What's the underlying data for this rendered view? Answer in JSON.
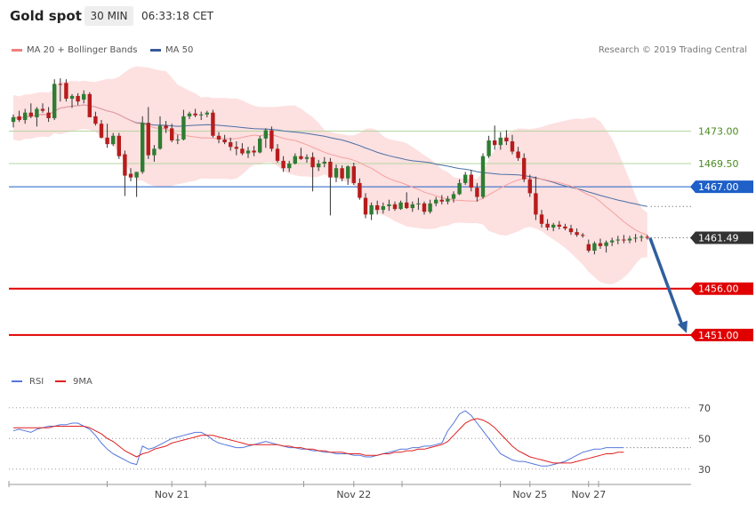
{
  "header": {
    "title": "Gold spot",
    "timeframe": "30 MIN",
    "time": "06:33:18 CET"
  },
  "legend": {
    "ma20_label": "MA 20 + Bollinger Bands",
    "ma20_color": "#f08080",
    "ma50_label": "MA 50",
    "ma50_color": "#3a5a9a",
    "credit": "Research © 2019 Trading Central"
  },
  "colors": {
    "up": "#2e7d32",
    "down": "#b71c1c",
    "band": "#fde0e0",
    "ma20": "#f4a0a0",
    "ma50": "#4a6fa5",
    "resistance": "#b5d6a0",
    "pivot": "#1e5fc8",
    "support": "#e00000",
    "arrow": "#2f5f9e"
  },
  "chart_data": [
    {
      "type": "candlestick",
      "title": "Gold spot",
      "ylim": [
        1448.3,
        1479.0
      ],
      "x_labels": [
        {
          "label": "Nov 21",
          "index": 27
        },
        {
          "label": "Nov 22",
          "index": 58
        },
        {
          "label": "Nov 25",
          "index": 88
        },
        {
          "label": "Nov 27",
          "index": 98
        }
      ],
      "levels": [
        {
          "label": "1473.00",
          "value": 1473.0,
          "kind": "resistance"
        },
        {
          "label": "1469.50",
          "value": 1469.5,
          "kind": "resistance"
        },
        {
          "label": "1467.00",
          "value": 1467.0,
          "kind": "pivot"
        },
        {
          "label": "1461.49",
          "value": 1461.49,
          "kind": "last"
        },
        {
          "label": "1456.00",
          "value": 1456.0,
          "kind": "support"
        },
        {
          "label": "1451.00",
          "value": 1451.0,
          "kind": "support"
        }
      ],
      "forecast_arrow": {
        "from": 1461.49,
        "to": 1451.0
      },
      "candles": [
        [
          1474.0,
          1474.8,
          1473.4,
          1474.5
        ],
        [
          1474.6,
          1475.2,
          1474.0,
          1474.2
        ],
        [
          1474.2,
          1475.4,
          1473.8,
          1475.0
        ],
        [
          1475.0,
          1476.0,
          1474.4,
          1474.6
        ],
        [
          1474.5,
          1475.6,
          1473.5,
          1475.4
        ],
        [
          1475.4,
          1476.0,
          1475.0,
          1475.2
        ],
        [
          1475.0,
          1475.6,
          1474.0,
          1474.4
        ],
        [
          1474.4,
          1478.6,
          1474.2,
          1478.1
        ],
        [
          1478.1,
          1478.7,
          1476.2,
          1478.0
        ],
        [
          1478.2,
          1478.6,
          1476.2,
          1476.5
        ],
        [
          1476.5,
          1477.0,
          1475.5,
          1476.8
        ],
        [
          1476.8,
          1477.1,
          1475.8,
          1476.2
        ],
        [
          1476.4,
          1477.4,
          1476.0,
          1477.0
        ],
        [
          1477.0,
          1477.2,
          1474.6,
          1474.5
        ],
        [
          1474.6,
          1475.1,
          1473.6,
          1473.8
        ],
        [
          1473.8,
          1474.2,
          1472.2,
          1472.3
        ],
        [
          1472.3,
          1473.8,
          1471.2,
          1471.6
        ],
        [
          1471.6,
          1472.8,
          1471.4,
          1472.5
        ],
        [
          1472.5,
          1472.8,
          1470.0,
          1470.3
        ],
        [
          1470.5,
          1470.9,
          1466.0,
          1468.2
        ],
        [
          1468.4,
          1469.0,
          1467.6,
          1468.0
        ],
        [
          1468.0,
          1468.6,
          1465.9,
          1468.6
        ],
        [
          1468.6,
          1474.6,
          1468.4,
          1473.9
        ],
        [
          1473.9,
          1475.6,
          1470.0,
          1470.4
        ],
        [
          1470.4,
          1471.5,
          1469.7,
          1471.1
        ],
        [
          1471.1,
          1474.6,
          1471.0,
          1473.6
        ],
        [
          1473.6,
          1474.1,
          1472.8,
          1473.3
        ],
        [
          1473.3,
          1473.8,
          1471.8,
          1472.0
        ],
        [
          1472.0,
          1472.6,
          1471.6,
          1472.1
        ],
        [
          1472.1,
          1475.3,
          1472.0,
          1474.6
        ],
        [
          1474.6,
          1475.1,
          1474.3,
          1474.9
        ],
        [
          1474.9,
          1475.4,
          1474.5,
          1474.7
        ],
        [
          1474.7,
          1475.1,
          1474.2,
          1474.8
        ],
        [
          1474.8,
          1475.2,
          1474.5,
          1475.0
        ],
        [
          1475.0,
          1475.3,
          1472.3,
          1472.5
        ],
        [
          1472.5,
          1472.9,
          1471.7,
          1472.1
        ],
        [
          1472.1,
          1472.6,
          1471.6,
          1471.8
        ],
        [
          1471.8,
          1472.3,
          1470.9,
          1471.3
        ],
        [
          1471.3,
          1471.9,
          1470.4,
          1471.1
        ],
        [
          1471.1,
          1471.7,
          1470.4,
          1470.6
        ],
        [
          1470.6,
          1471.3,
          1470.1,
          1470.9
        ],
        [
          1470.9,
          1471.4,
          1470.3,
          1470.7
        ],
        [
          1470.7,
          1472.5,
          1470.6,
          1472.2
        ],
        [
          1472.2,
          1473.3,
          1471.2,
          1473.1
        ],
        [
          1473.1,
          1473.5,
          1470.8,
          1471.1
        ],
        [
          1471.1,
          1471.6,
          1469.6,
          1469.8
        ],
        [
          1469.8,
          1470.3,
          1468.6,
          1469.0
        ],
        [
          1469.0,
          1469.8,
          1468.6,
          1469.5
        ],
        [
          1469.5,
          1470.6,
          1469.4,
          1470.3
        ],
        [
          1470.3,
          1471.2,
          1469.9,
          1470.0
        ],
        [
          1470.0,
          1470.5,
          1469.6,
          1470.2
        ],
        [
          1470.2,
          1470.7,
          1466.5,
          1469.1
        ],
        [
          1469.1,
          1469.9,
          1468.7,
          1469.5
        ],
        [
          1469.5,
          1470.2,
          1469.1,
          1469.7
        ],
        [
          1469.7,
          1470.1,
          1463.9,
          1468.0
        ],
        [
          1468.0,
          1469.4,
          1467.5,
          1469.0
        ],
        [
          1469.0,
          1469.3,
          1467.6,
          1467.9
        ],
        [
          1467.9,
          1469.3,
          1467.2,
          1469.2
        ],
        [
          1469.2,
          1469.6,
          1467.2,
          1467.4
        ],
        [
          1467.4,
          1467.9,
          1465.6,
          1465.8
        ],
        [
          1465.8,
          1466.3,
          1463.6,
          1464.0
        ],
        [
          1464.0,
          1465.3,
          1463.4,
          1465.0
        ],
        [
          1465.0,
          1465.5,
          1464.0,
          1464.5
        ],
        [
          1464.5,
          1465.3,
          1464.1,
          1464.9
        ],
        [
          1464.9,
          1465.6,
          1464.4,
          1465.1
        ],
        [
          1465.1,
          1465.4,
          1464.4,
          1464.6
        ],
        [
          1464.6,
          1465.5,
          1464.5,
          1465.3
        ],
        [
          1465.3,
          1466.4,
          1464.6,
          1464.7
        ],
        [
          1464.7,
          1465.4,
          1464.3,
          1465.1
        ],
        [
          1465.1,
          1465.8,
          1464.5,
          1465.2
        ],
        [
          1465.2,
          1465.4,
          1464.0,
          1464.3
        ],
        [
          1464.3,
          1465.6,
          1464.1,
          1465.2
        ],
        [
          1465.2,
          1465.9,
          1464.9,
          1465.6
        ],
        [
          1465.6,
          1466.1,
          1465.1,
          1465.4
        ],
        [
          1465.4,
          1466.0,
          1465.1,
          1465.7
        ],
        [
          1465.7,
          1466.5,
          1465.3,
          1466.2
        ],
        [
          1466.2,
          1467.8,
          1466.1,
          1467.4
        ],
        [
          1467.4,
          1468.6,
          1467.2,
          1468.3
        ],
        [
          1468.3,
          1468.8,
          1466.5,
          1466.9
        ],
        [
          1466.9,
          1467.4,
          1465.4,
          1465.9
        ],
        [
          1465.9,
          1470.6,
          1465.7,
          1470.3
        ],
        [
          1470.3,
          1472.5,
          1470.1,
          1472.0
        ],
        [
          1472.0,
          1473.6,
          1471.0,
          1471.5
        ],
        [
          1471.5,
          1472.9,
          1471.0,
          1472.3
        ],
        [
          1472.3,
          1473.1,
          1471.5,
          1471.9
        ],
        [
          1471.9,
          1472.6,
          1470.5,
          1470.8
        ],
        [
          1470.8,
          1471.3,
          1469.8,
          1470.1
        ],
        [
          1470.1,
          1470.6,
          1467.5,
          1467.8
        ],
        [
          1467.8,
          1468.3,
          1465.9,
          1466.3
        ],
        [
          1466.3,
          1468.1,
          1463.4,
          1464.0
        ],
        [
          1464.0,
          1464.5,
          1462.6,
          1463.0
        ],
        [
          1463.0,
          1463.5,
          1462.3,
          1462.6
        ],
        [
          1462.6,
          1463.1,
          1462.2,
          1462.9
        ],
        [
          1462.9,
          1463.3,
          1462.4,
          1462.7
        ],
        [
          1462.7,
          1463.0,
          1462.3,
          1462.5
        ],
        [
          1462.5,
          1462.9,
          1461.8,
          1462.1
        ],
        [
          1462.1,
          1462.5,
          1461.6,
          1461.8
        ],
        [
          1461.8,
          1462.0,
          1461.5,
          1461.7
        ],
        [
          1460.8,
          1461.3,
          1459.9,
          1460.1
        ],
        [
          1460.1,
          1461.1,
          1459.7,
          1460.9
        ],
        [
          1460.9,
          1461.4,
          1460.3,
          1460.6
        ],
        [
          1460.6,
          1461.2,
          1459.9,
          1461.0
        ],
        [
          1461.0,
          1461.5,
          1460.6,
          1461.2
        ],
        [
          1461.2,
          1461.7,
          1460.8,
          1461.3
        ],
        [
          1461.3,
          1461.8,
          1460.9,
          1461.2
        ],
        [
          1461.2,
          1461.7,
          1460.9,
          1461.4
        ],
        [
          1461.4,
          1461.9,
          1461.0,
          1461.5
        ],
        [
          1461.5,
          1461.8,
          1461.1,
          1461.6
        ],
        [
          1461.6,
          1461.8,
          1461.3,
          1461.49
        ]
      ]
    },
    {
      "type": "line",
      "title": "",
      "ylim": [
        20,
        78
      ],
      "y_ticks": [
        30,
        50,
        70
      ],
      "series": [
        {
          "name": "RSI",
          "color": "#5577dd",
          "values": [
            55,
            56,
            55,
            54,
            56,
            57,
            58,
            58,
            59,
            59,
            60,
            60,
            58,
            56,
            52,
            47,
            43,
            40,
            38,
            36,
            34,
            33,
            45,
            43,
            44,
            46,
            48,
            50,
            51,
            52,
            53,
            54,
            54,
            52,
            49,
            47,
            46,
            45,
            44,
            44,
            45,
            46,
            47,
            48,
            47,
            46,
            45,
            44,
            44,
            43,
            43,
            42,
            42,
            41,
            41,
            40,
            40,
            40,
            39,
            39,
            38,
            38,
            39,
            40,
            41,
            42,
            43,
            43,
            44,
            44,
            45,
            45,
            46,
            47,
            55,
            60,
            66,
            68,
            65,
            60,
            55,
            50,
            45,
            40,
            38,
            36,
            35,
            35,
            34,
            33,
            32,
            32,
            33,
            34,
            35,
            37,
            39,
            41,
            42,
            43,
            43,
            44,
            44,
            44,
            44
          ]
        },
        {
          "name": "9MA",
          "color": "#e02020",
          "values": [
            57,
            57,
            57,
            57,
            57,
            57,
            57,
            58,
            58,
            58,
            58,
            58,
            58,
            57,
            55,
            53,
            50,
            48,
            45,
            42,
            40,
            38,
            40,
            41,
            43,
            44,
            45,
            47,
            48,
            49,
            50,
            51,
            52,
            52,
            52,
            51,
            50,
            49,
            48,
            47,
            46,
            46,
            46,
            46,
            46,
            46,
            45,
            45,
            44,
            44,
            43,
            43,
            42,
            42,
            41,
            41,
            41,
            40,
            40,
            40,
            39,
            39,
            39,
            40,
            40,
            41,
            41,
            42,
            42,
            43,
            43,
            44,
            45,
            46,
            48,
            52,
            56,
            60,
            62,
            63,
            62,
            60,
            57,
            53,
            49,
            45,
            42,
            40,
            38,
            37,
            36,
            35,
            34,
            34,
            34,
            34,
            35,
            36,
            37,
            38,
            39,
            40,
            40,
            41,
            41
          ]
        }
      ]
    }
  ]
}
